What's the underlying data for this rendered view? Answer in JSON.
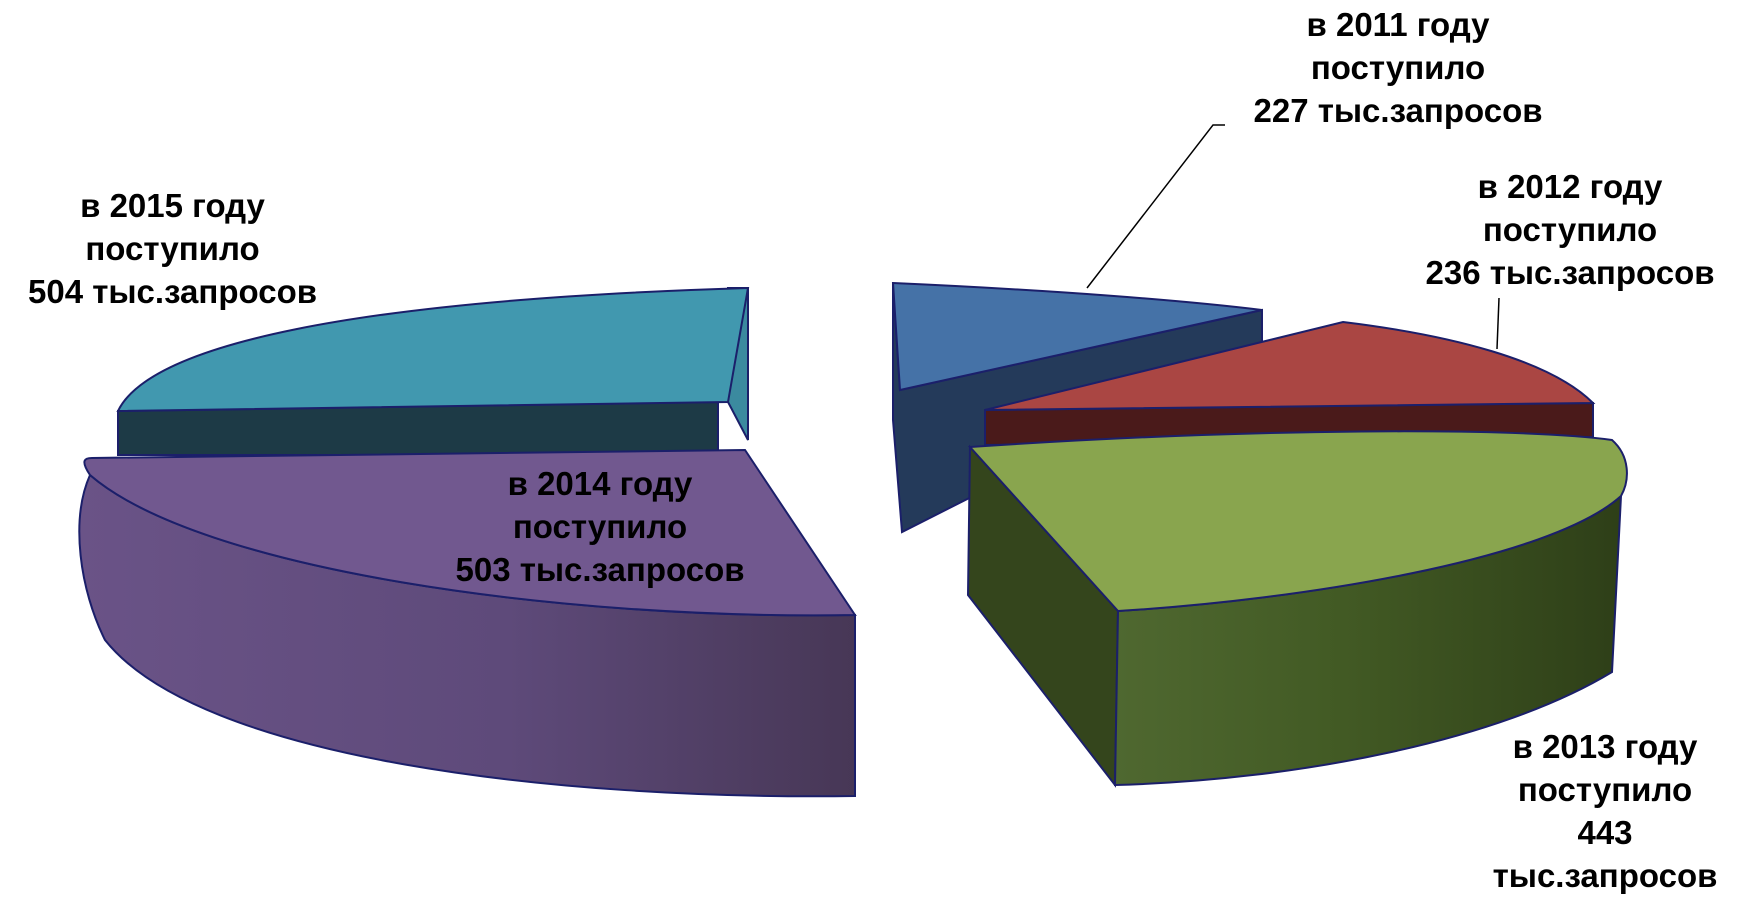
{
  "chart_data": {
    "type": "pie",
    "style": "3d-exploded",
    "title": "",
    "legend": "none",
    "slices": [
      {
        "year": "2011",
        "value": 227,
        "lines": [
          "в 2011 году",
          "поступило",
          "227 тыс.запросов"
        ],
        "color": "#4572a7"
      },
      {
        "year": "2012",
        "value": 236,
        "lines": [
          "в 2012 году",
          "поступило",
          "236 тыс.запросов"
        ],
        "color": "#aa4643"
      },
      {
        "year": "2013",
        "value": 443,
        "lines": [
          "в 2013 году",
          "поступило",
          "443",
          "тыс.запросов"
        ],
        "color": "#89a54e"
      },
      {
        "year": "2014",
        "value": 503,
        "lines": [
          "в 2014 году",
          "поступило",
          "503 тыс.запросов"
        ],
        "color": "#71588f"
      },
      {
        "year": "2015",
        "value": 504,
        "lines": [
          "в 2015 году",
          "поступило",
          "504 тыс.запросов"
        ],
        "color": "#4198af"
      }
    ]
  }
}
